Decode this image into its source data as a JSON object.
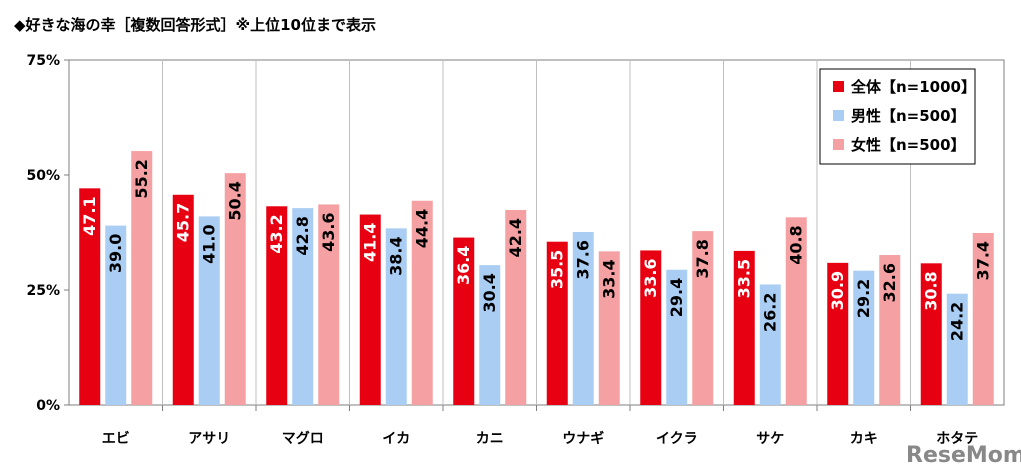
{
  "chart_data": {
    "type": "bar",
    "title": "◆好きな海の幸［複数回答形式］※上位10位まで表示",
    "categories": [
      "エビ",
      "アサリ",
      "マグロ",
      "イカ",
      "カニ",
      "ウナギ",
      "イクラ",
      "サケ",
      "カキ",
      "ホタテ"
    ],
    "series": [
      {
        "name": "全体【n=1000】",
        "color": "#e60012",
        "label_color": "#ffffff",
        "values": [
          47.1,
          45.7,
          43.2,
          41.4,
          36.4,
          35.5,
          33.6,
          33.5,
          30.9,
          30.8
        ]
      },
      {
        "name": "男性【n=500】",
        "color": "#a9cdf3",
        "label_color": "#000000",
        "values": [
          39.0,
          41.0,
          42.8,
          38.4,
          30.4,
          37.6,
          29.4,
          26.2,
          29.2,
          24.2
        ]
      },
      {
        "name": "女性【n=500】",
        "color": "#f5a0a2",
        "label_color": "#000000",
        "values": [
          55.2,
          50.4,
          43.6,
          44.4,
          42.4,
          33.4,
          37.8,
          40.8,
          32.6,
          37.4
        ]
      }
    ],
    "ylim": [
      0,
      75
    ],
    "yticks": [
      "0%",
      "25%",
      "50%",
      "75%"
    ],
    "ytick_values": [
      0,
      25,
      50,
      75
    ],
    "value_format": "one-decimal",
    "grid": "vertical-category-separators",
    "legend_position": "top-right"
  },
  "watermark": "ReseMom"
}
